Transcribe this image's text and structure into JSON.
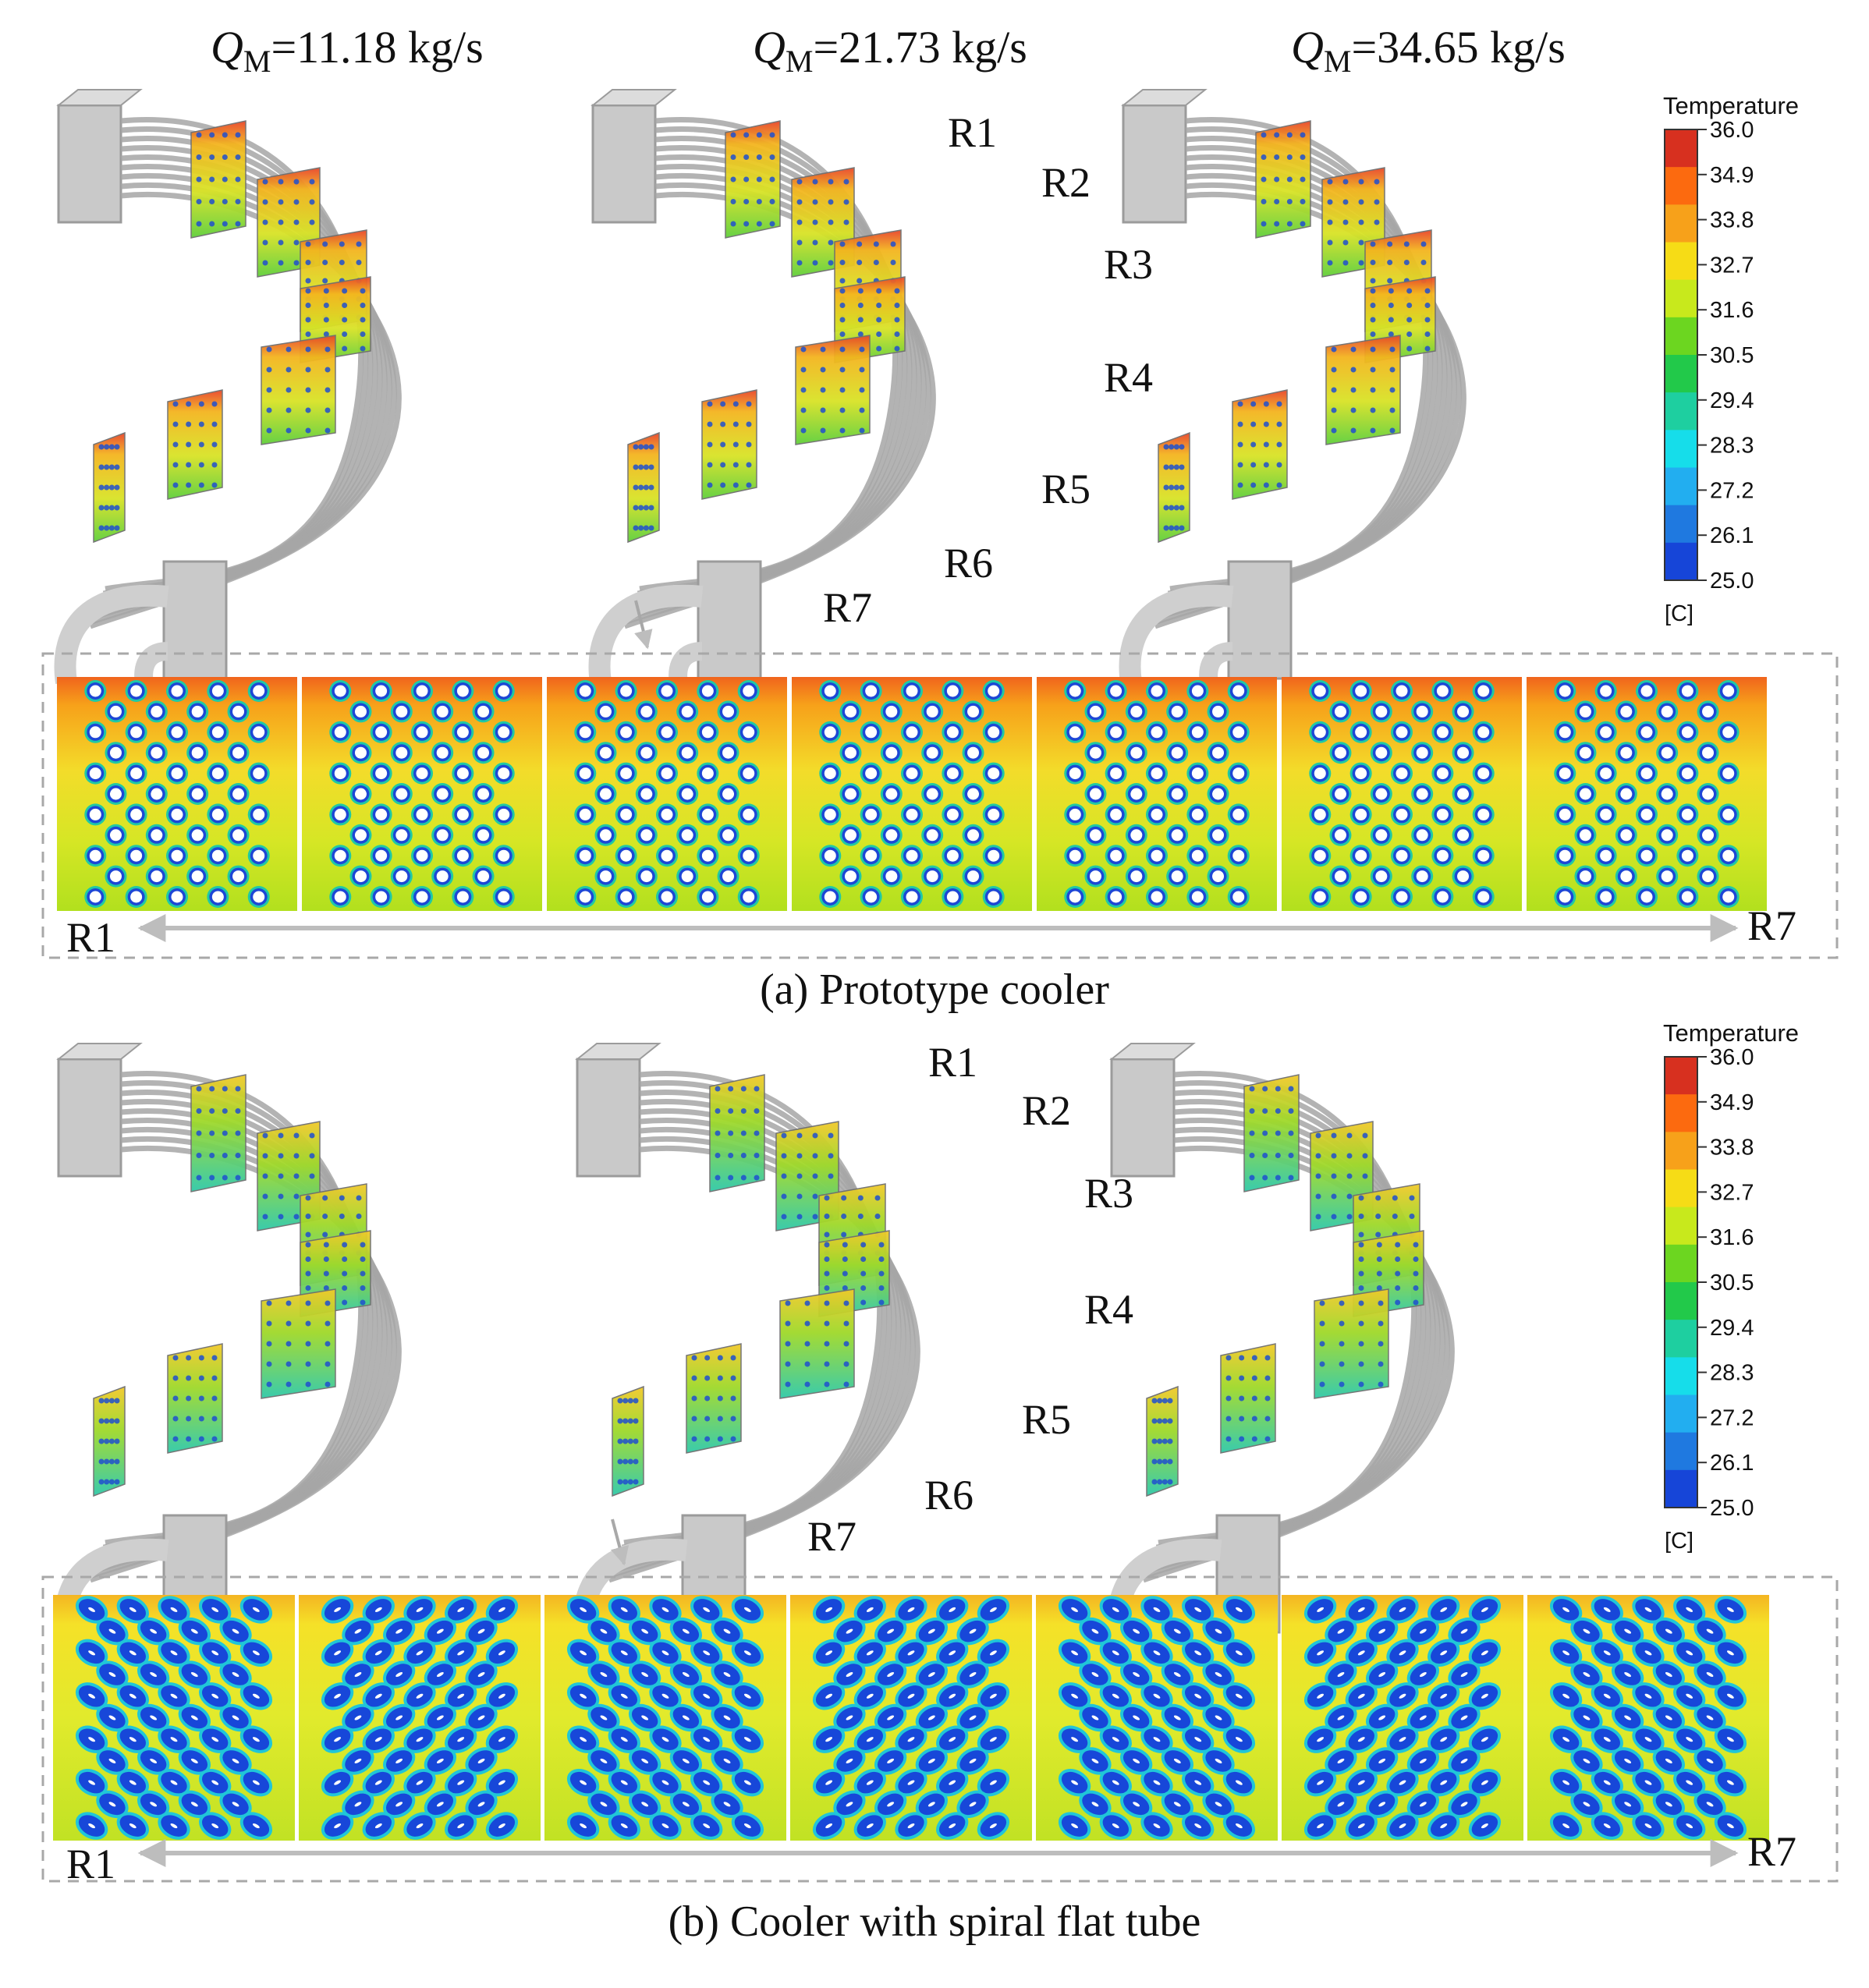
{
  "flow_rates": [
    {
      "symbol": "Q",
      "subscript": "M",
      "value_text": "=11.18 kg/s"
    },
    {
      "symbol": "Q",
      "subscript": "M",
      "value_text": "=21.73 kg/s"
    },
    {
      "symbol": "Q",
      "subscript": "M",
      "value_text": "=34.65 kg/s"
    }
  ],
  "section_labels": [
    "R1",
    "R2",
    "R3",
    "R4",
    "R5",
    "R6",
    "R7"
  ],
  "legend": {
    "title": "Temperature",
    "unit": "[C]",
    "ticks": [
      "36.0",
      "34.9",
      "33.8",
      "32.7",
      "31.6",
      "30.5",
      "29.4",
      "28.3",
      "27.2",
      "26.1",
      "25.0"
    ],
    "colors": [
      "#d7301f",
      "#fc6a0f",
      "#f7a11a",
      "#f6dc16",
      "#c8e91c",
      "#6cd620",
      "#22c94a",
      "#1ecfa0",
      "#16ddea",
      "#22aef0",
      "#1f79e0",
      "#1645d8"
    ]
  },
  "strip_range": {
    "start": "R1",
    "end": "R7"
  },
  "panels": [
    {
      "caption": "(a) Prototype cooler",
      "variant": "prototype"
    },
    {
      "caption": "(b) Cooler with spiral flat tube",
      "variant": "spiral"
    }
  ]
}
